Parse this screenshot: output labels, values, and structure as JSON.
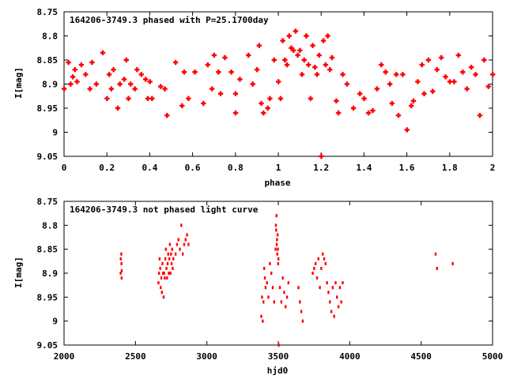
{
  "chart_data": [
    {
      "type": "scatter",
      "title": "164206-3749.3 phased with P=25.1700day",
      "xlabel": "phase",
      "ylabel": "I[mag]",
      "xlim": [
        0,
        2
      ],
      "ylim": [
        9.05,
        8.75
      ],
      "y_inverted": true,
      "xticks": [
        "0",
        "0.2",
        "0.4",
        "0.6",
        "0.8",
        "1",
        "1.2",
        "1.4",
        "1.6",
        "1.8",
        "2"
      ],
      "yticks": [
        "8.75",
        "8.8",
        "8.85",
        "8.9",
        "8.95",
        "9",
        "9.05"
      ],
      "grid": false,
      "marker": "plus",
      "color": "#ff0000",
      "series": [
        {
          "x": [
            0.0,
            0.02,
            0.03,
            0.04,
            0.05,
            0.06,
            0.08,
            0.1,
            0.12,
            0.13,
            0.15,
            0.18,
            0.2,
            0.21,
            0.22,
            0.23,
            0.25,
            0.26,
            0.28,
            0.29,
            0.3,
            0.31,
            0.33,
            0.34,
            0.36,
            0.38,
            0.39,
            0.4,
            0.41,
            0.45,
            0.47,
            0.48,
            0.52,
            0.55,
            0.56,
            0.58,
            0.61,
            0.65,
            0.67,
            0.69,
            0.7,
            0.72,
            0.73,
            0.75,
            0.78,
            0.8,
            0.8,
            0.82,
            0.86,
            0.88,
            0.9,
            0.91,
            0.92,
            0.93,
            0.95,
            0.96,
            0.98,
            1.0,
            1.01,
            1.02,
            1.03,
            1.04,
            1.05,
            1.06,
            1.07,
            1.08,
            1.09,
            1.1,
            1.11,
            1.12,
            1.13,
            1.14,
            1.15,
            1.16,
            1.17,
            1.18,
            1.19,
            1.2,
            1.21,
            1.22,
            1.23,
            1.24,
            1.25,
            1.27,
            1.28,
            1.3,
            1.32,
            1.35,
            1.38,
            1.4,
            1.42,
            1.44,
            1.46,
            1.48,
            1.5,
            1.52,
            1.53,
            1.55,
            1.56,
            1.58,
            1.6,
            1.62,
            1.63,
            1.65,
            1.67,
            1.68,
            1.7,
            1.72,
            1.74,
            1.76,
            1.78,
            1.8,
            1.82,
            1.84,
            1.86,
            1.88,
            1.9,
            1.92,
            1.94,
            1.96,
            1.98,
            2.0
          ],
          "y": [
            8.91,
            8.855,
            8.9,
            8.885,
            8.87,
            8.895,
            8.86,
            8.88,
            8.91,
            8.855,
            8.9,
            8.835,
            8.93,
            8.88,
            8.91,
            8.87,
            8.95,
            8.9,
            8.89,
            8.85,
            8.93,
            8.9,
            8.91,
            8.87,
            8.88,
            8.89,
            8.93,
            8.895,
            8.93,
            8.905,
            8.91,
            8.965,
            8.855,
            8.945,
            8.875,
            8.93,
            8.875,
            8.94,
            8.86,
            8.91,
            8.84,
            8.875,
            8.92,
            8.845,
            8.875,
            8.96,
            8.92,
            8.89,
            8.84,
            8.9,
            8.87,
            8.82,
            8.94,
            8.96,
            8.95,
            8.93,
            8.85,
            8.895,
            8.93,
            8.81,
            8.85,
            8.86,
            8.8,
            8.825,
            8.83,
            8.79,
            8.84,
            8.83,
            8.88,
            8.85,
            8.8,
            8.86,
            8.93,
            8.82,
            8.865,
            8.88,
            8.84,
            9.05,
            8.81,
            8.86,
            8.8,
            8.87,
            8.845,
            8.935,
            8.96,
            8.88,
            8.9,
            8.95,
            8.92,
            8.93,
            8.96,
            8.955,
            8.91,
            8.86,
            8.875,
            8.9,
            8.94,
            8.88,
            8.965,
            8.88,
            8.995,
            8.945,
            8.935,
            8.895,
            8.86,
            8.92,
            8.85,
            8.915,
            8.87,
            8.845,
            8.885,
            8.895,
            8.895,
            8.84,
            8.875,
            8.91,
            8.865,
            8.88,
            8.965,
            8.85,
            8.905,
            8.88
          ]
        }
      ]
    },
    {
      "type": "scatter",
      "title": "164206-3749.3 not phased light curve",
      "xlabel": "hjd0",
      "ylabel": "I[mag]",
      "xlim": [
        2000,
        5000
      ],
      "ylim": [
        9.05,
        8.75
      ],
      "y_inverted": true,
      "xticks": [
        "2000",
        "2500",
        "3000",
        "3500",
        "4000",
        "4500",
        "5000"
      ],
      "yticks": [
        "8.75",
        "8.8",
        "8.85",
        "8.9",
        "8.95",
        "9",
        "9.05"
      ],
      "grid": false,
      "marker": "dot",
      "color": "#ff0000",
      "series": [
        {
          "x": [
            2395,
            2396,
            2400,
            2401,
            2402,
            2403,
            2660,
            2664,
            2668,
            2672,
            2676,
            2680,
            2684,
            2688,
            2692,
            2696,
            2700,
            2704,
            2708,
            2712,
            2716,
            2720,
            2724,
            2728,
            2732,
            2736,
            2740,
            2744,
            2748,
            2752,
            2756,
            2760,
            2764,
            2780,
            2790,
            2800,
            2810,
            2820,
            2830,
            2840,
            2850,
            2860,
            2870,
            3380,
            3385,
            3390,
            3395,
            3400,
            3405,
            3410,
            3420,
            3430,
            3440,
            3450,
            3460,
            3470,
            3480,
            3482,
            3484,
            3486,
            3488,
            3490,
            3492,
            3494,
            3496,
            3498,
            3500,
            3502,
            3510,
            3520,
            3530,
            3540,
            3550,
            3560,
            3570,
            3640,
            3650,
            3660,
            3670,
            3740,
            3750,
            3760,
            3770,
            3780,
            3790,
            3800,
            3810,
            3820,
            3830,
            3840,
            3850,
            3860,
            3870,
            3880,
            3890,
            3900,
            3910,
            3920,
            3930,
            3940,
            3950,
            4600,
            4610,
            4720
          ],
          "y": [
            8.9,
            8.87,
            8.86,
            8.88,
            8.91,
            8.895,
            8.92,
            8.9,
            8.87,
            8.89,
            8.93,
            8.91,
            8.94,
            8.88,
            8.9,
            8.95,
            8.9,
            8.91,
            8.87,
            8.85,
            8.89,
            8.91,
            8.88,
            8.86,
            8.9,
            8.87,
            8.84,
            8.9,
            8.86,
            8.88,
            8.85,
            8.89,
            8.87,
            8.86,
            8.84,
            8.83,
            8.85,
            8.8,
            8.86,
            8.84,
            8.83,
            8.82,
            8.84,
            8.99,
            8.95,
            9.0,
            8.96,
            8.89,
            8.91,
            8.93,
            8.92,
            8.95,
            8.88,
            8.9,
            8.93,
            8.96,
            8.85,
            8.8,
            8.81,
            8.78,
            8.84,
            8.83,
            8.86,
            8.82,
            8.85,
            8.88,
            8.87,
            9.05,
            8.93,
            8.96,
            8.91,
            8.94,
            8.97,
            8.95,
            8.92,
            8.93,
            8.96,
            8.98,
            9.0,
            8.9,
            8.89,
            8.88,
            8.91,
            8.87,
            8.93,
            8.89,
            8.86,
            8.87,
            8.88,
            8.92,
            8.94,
            8.96,
            8.98,
            8.93,
            8.99,
            8.92,
            8.95,
            8.97,
            8.93,
            8.96,
            8.92,
            8.86,
            8.89,
            8.88
          ]
        }
      ]
    }
  ]
}
